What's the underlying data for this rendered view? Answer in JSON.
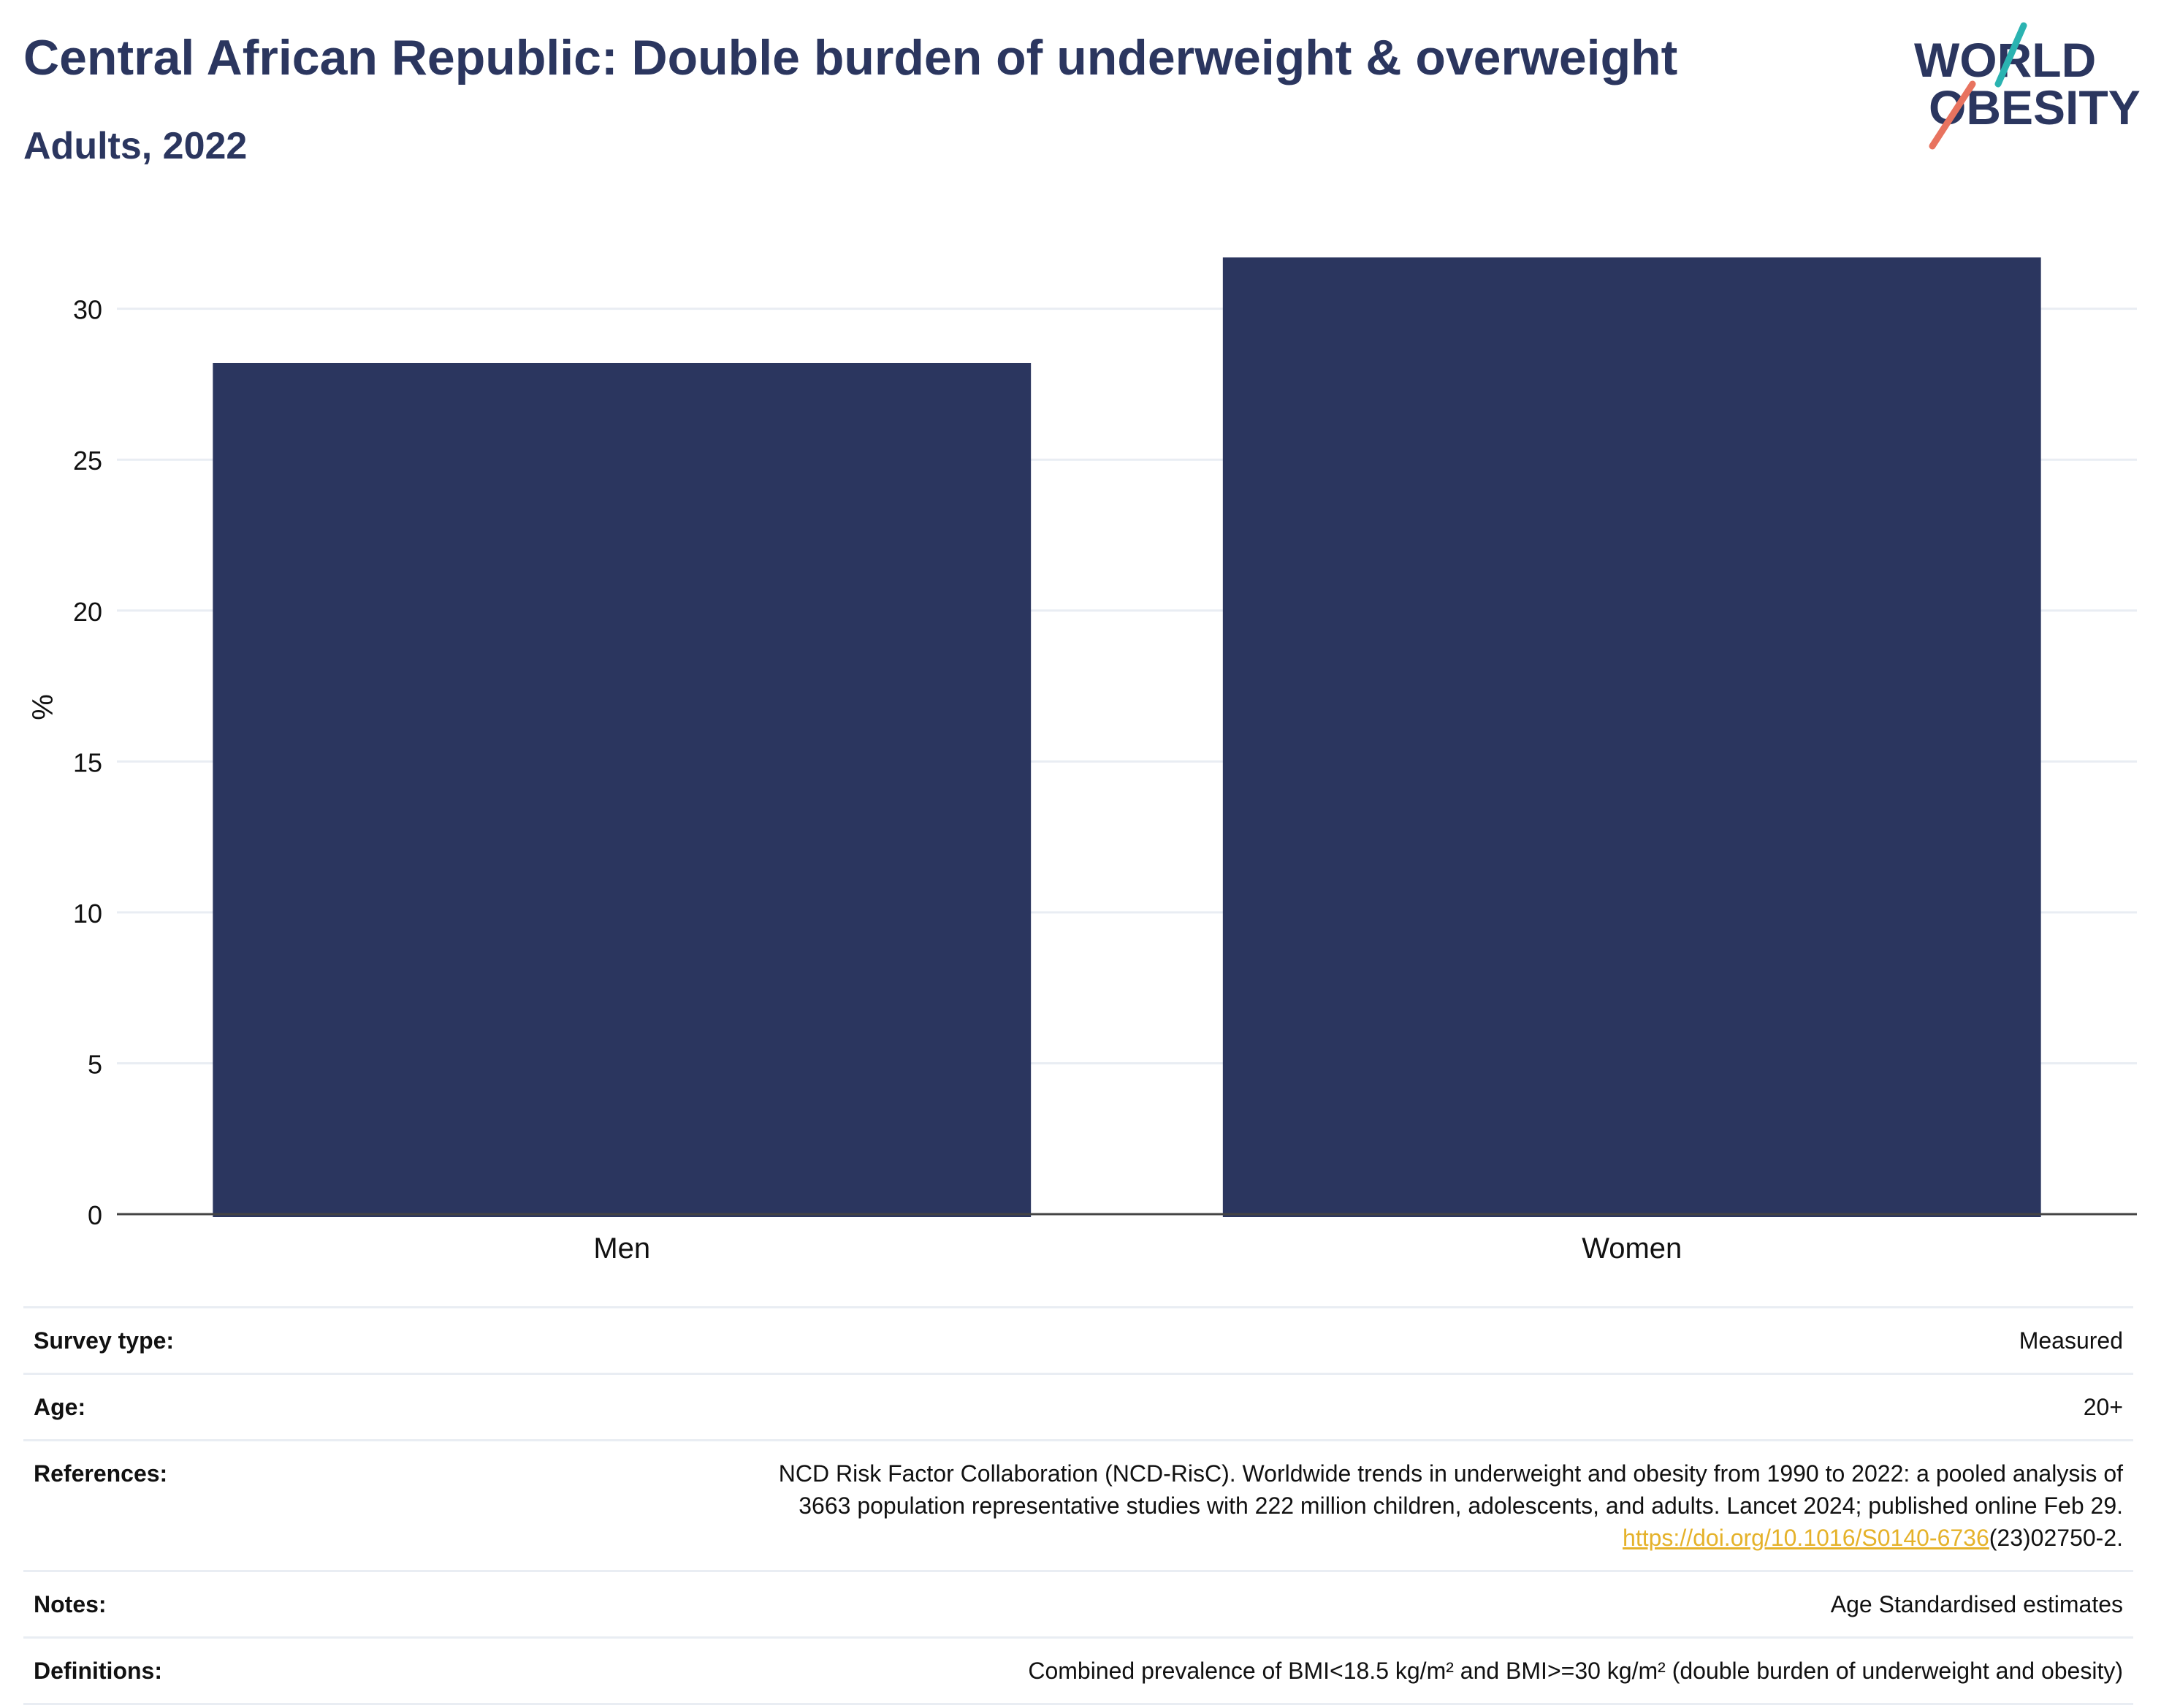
{
  "title": "Central African Republic: Double burden of underweight & overweight",
  "subtitle": "Adults, 2022",
  "logo": {
    "line1": "WORLD",
    "line2": "OBESITY",
    "icon": "world-obesity-logo"
  },
  "colors": {
    "bar": "#2b365f",
    "text": "#2b365f",
    "grid": "#e9edf3",
    "link": "#e5b22a",
    "logo_teal": "#2bb3b1",
    "logo_coral": "#e8735f"
  },
  "chart_data": {
    "type": "bar",
    "categories": [
      "Men",
      "Women"
    ],
    "values": [
      28.2,
      31.7
    ],
    "ylabel": "%",
    "ylim": [
      0,
      32
    ],
    "yticks": [
      0,
      5,
      10,
      15,
      20,
      25,
      30
    ],
    "grid": true
  },
  "meta": {
    "survey_type_label": "Survey type:",
    "survey_type_value": "Measured",
    "age_label": "Age:",
    "age_value": "20+",
    "references_label": "References:",
    "references_line1": "NCD Risk Factor Collaboration (NCD-RisC). Worldwide trends in underweight and obesity from 1990 to 2022: a pooled analysis of",
    "references_line2": "3663 population representative studies with 222 million children, adolescents, and adults. Lancet 2024; published online Feb 29.",
    "references_link": "https://doi.org/10.1016/S0140-6736",
    "references_tail": "(23)02750-2.",
    "notes_label": "Notes:",
    "notes_value": "Age Standardised estimates",
    "definitions_label": "Definitions:",
    "definitions_value": "Combined prevalence of BMI<18.5 kg/m² and BMI>=30 kg/m² (double burden of underweight and obesity)"
  }
}
